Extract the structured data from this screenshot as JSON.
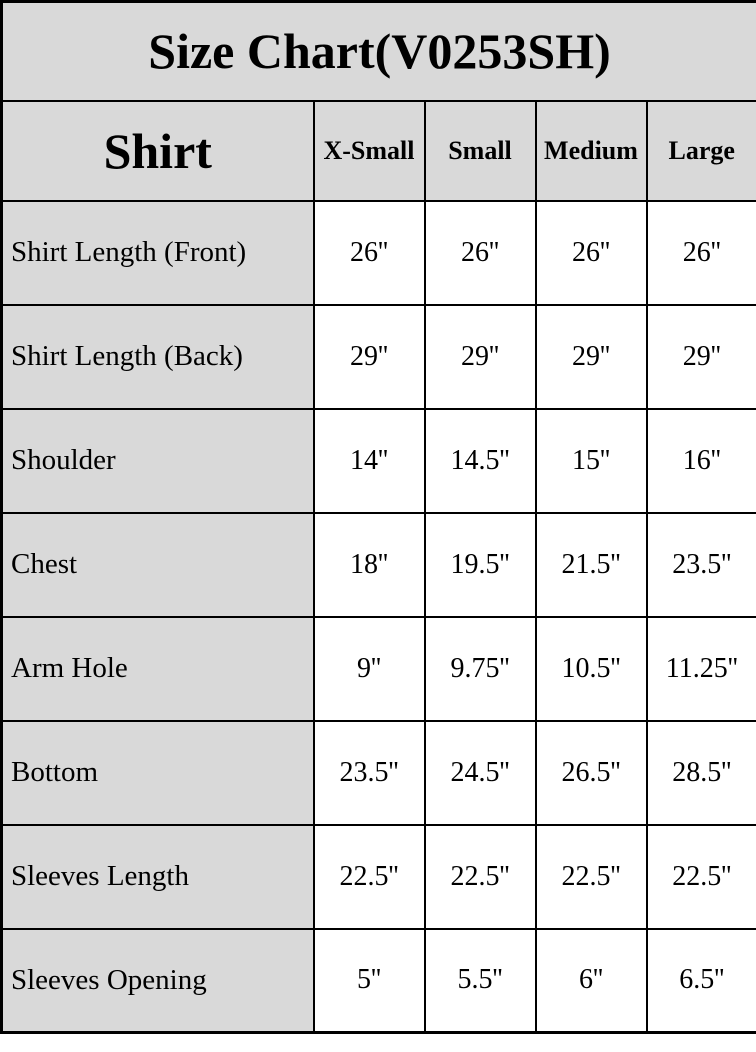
{
  "title": "Size Chart(V0253SH)",
  "table": {
    "corner_label": "Shirt",
    "columns": [
      "X-Small",
      "Small",
      "Medium",
      "Large"
    ],
    "rows": [
      {
        "label": "Shirt Length (Front)",
        "values": [
          "26''",
          "26''",
          "26''",
          "26''"
        ]
      },
      {
        "label": "Shirt Length (Back)",
        "values": [
          "29''",
          "29''",
          "29''",
          "29''"
        ]
      },
      {
        "label": "Shoulder",
        "values": [
          "14''",
          "14.5''",
          "15''",
          "16''"
        ]
      },
      {
        "label": "Chest",
        "values": [
          "18''",
          "19.5''",
          "21.5''",
          "23.5''"
        ]
      },
      {
        "label": "Arm Hole",
        "values": [
          "9''",
          "9.75''",
          "10.5''",
          "11.25''"
        ]
      },
      {
        "label": "Bottom",
        "values": [
          "23.5''",
          "24.5''",
          "26.5''",
          "28.5''"
        ]
      },
      {
        "label": "Sleeves Length",
        "values": [
          "22.5''",
          "22.5''",
          "22.5''",
          "22.5''"
        ]
      },
      {
        "label": "Sleeves Opening",
        "values": [
          "5''",
          "5.5''",
          "6''",
          "6.5''"
        ]
      }
    ]
  },
  "colors": {
    "header_bg": "#d9d9d9",
    "cell_bg": "#ffffff",
    "border": "#000000",
    "text": "#000000"
  },
  "chart_data": {
    "type": "table",
    "title": "Size Chart(V0253SH)",
    "columns": [
      "Shirt",
      "X-Small",
      "Small",
      "Medium",
      "Large"
    ],
    "rows": [
      [
        "Shirt Length (Front)",
        "26''",
        "26''",
        "26''",
        "26''"
      ],
      [
        "Shirt Length (Back)",
        "29''",
        "29''",
        "29''",
        "29''"
      ],
      [
        "Shoulder",
        "14''",
        "14.5''",
        "15''",
        "16''"
      ],
      [
        "Chest",
        "18''",
        "19.5''",
        "21.5''",
        "23.5''"
      ],
      [
        "Arm Hole",
        "9''",
        "9.75''",
        "10.5''",
        "11.25''"
      ],
      [
        "Bottom",
        "23.5''",
        "24.5''",
        "26.5''",
        "28.5''"
      ],
      [
        "Sleeves Length",
        "22.5''",
        "22.5''",
        "22.5''",
        "22.5''"
      ],
      [
        "Sleeves Opening",
        "5''",
        "5.5''",
        "6''",
        "6.5''"
      ]
    ]
  }
}
